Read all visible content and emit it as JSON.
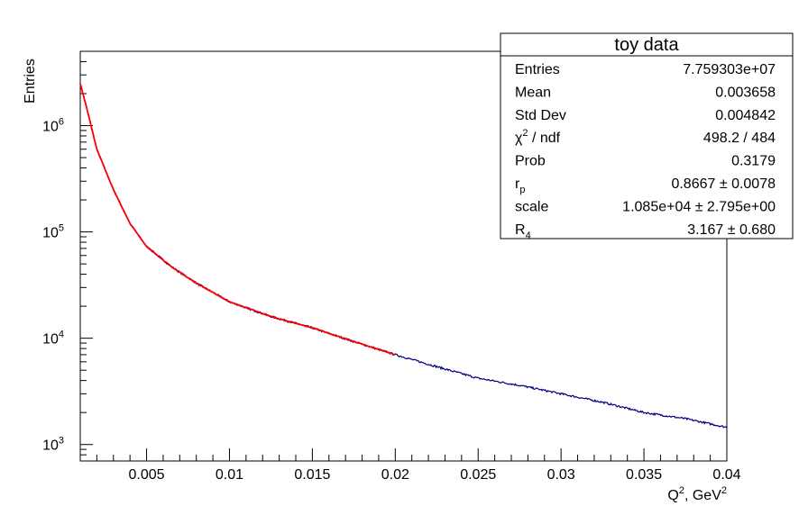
{
  "chart_data": {
    "type": "line",
    "title": "",
    "xlabel": {
      "base": "Q",
      "sup": "2",
      "rest": ", GeV",
      "sup2": "2"
    },
    "ylabel": "Entries",
    "xlim": [
      0.001,
      0.04
    ],
    "ylim": [
      700,
      5000000
    ],
    "yscale": "log",
    "grid": false,
    "x_ticks": [
      {
        "value": 0.005,
        "label": "0.005"
      },
      {
        "value": 0.01,
        "label": "0.01"
      },
      {
        "value": 0.015,
        "label": "0.015"
      },
      {
        "value": 0.02,
        "label": "0.02"
      },
      {
        "value": 0.025,
        "label": "0.025"
      },
      {
        "value": 0.03,
        "label": "0.03"
      },
      {
        "value": 0.035,
        "label": "0.035"
      },
      {
        "value": 0.04,
        "label": "0.04"
      }
    ],
    "y_ticks": [
      {
        "value": 1000,
        "base": "10",
        "exp": "3"
      },
      {
        "value": 10000,
        "base": "10",
        "exp": "4"
      },
      {
        "value": 100000,
        "base": "10",
        "exp": "5"
      },
      {
        "value": 1000000,
        "base": "10",
        "exp": "6"
      }
    ],
    "series": [
      {
        "color": "#000080",
        "points": [
          [
            0.001,
            2500000
          ],
          [
            0.0015,
            1250000
          ],
          [
            0.002,
            600000
          ],
          [
            0.003,
            250000
          ],
          [
            0.004,
            120000
          ],
          [
            0.005,
            73000
          ],
          [
            0.0065,
            47000
          ],
          [
            0.008,
            33000
          ],
          [
            0.01,
            22000
          ],
          [
            0.0125,
            16000
          ],
          [
            0.015,
            12500
          ],
          [
            0.0175,
            9300
          ],
          [
            0.02,
            7000
          ],
          [
            0.0225,
            5400
          ],
          [
            0.025,
            4200
          ],
          [
            0.0275,
            3600
          ],
          [
            0.03,
            3000
          ],
          [
            0.0325,
            2500
          ],
          [
            0.035,
            2000
          ],
          [
            0.0375,
            1750
          ],
          [
            0.04,
            1450
          ]
        ]
      },
      {
        "color": "#ff0000",
        "points": [
          [
            0.001,
            2500000
          ],
          [
            0.0015,
            1250000
          ],
          [
            0.002,
            600000
          ],
          [
            0.003,
            250000
          ],
          [
            0.004,
            120000
          ],
          [
            0.005,
            73000
          ],
          [
            0.0065,
            47000
          ],
          [
            0.008,
            33000
          ],
          [
            0.01,
            22000
          ],
          [
            0.0125,
            16000
          ],
          [
            0.015,
            12500
          ],
          [
            0.0175,
            9300
          ],
          [
            0.02,
            7000
          ]
        ]
      }
    ],
    "stats_box": {
      "title": "toy data",
      "placement": "top-right",
      "rows": [
        {
          "label": "Entries",
          "value": "7.759303e+07"
        },
        {
          "label": "Mean",
          "value": "0.003658"
        },
        {
          "label": "Std Dev",
          "value": "0.004842"
        },
        {
          "label_main": "χ",
          "label_sup": "2",
          "label_rest": " / ndf",
          "value": "498.2 / 484"
        },
        {
          "label": "Prob",
          "value": "0.3179"
        },
        {
          "label_main": "r",
          "label_sub": "p",
          "value": "0.8667 ± 0.0078"
        },
        {
          "label": "scale",
          "value": "1.085e+04 ± 2.795e+00"
        },
        {
          "label_main": "R",
          "label_sub": "4",
          "value": "3.167 ± 0.680"
        }
      ]
    }
  }
}
